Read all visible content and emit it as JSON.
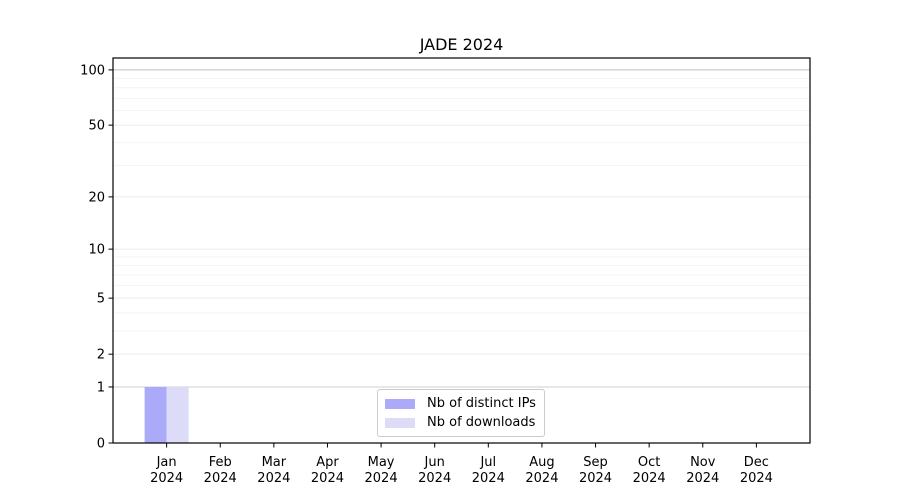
{
  "chart_data": {
    "type": "bar",
    "title": "JADE 2024",
    "year_label": "2024",
    "categories": [
      "Jan",
      "Feb",
      "Mar",
      "Apr",
      "May",
      "Jun",
      "Jul",
      "Aug",
      "Sep",
      "Oct",
      "Nov",
      "Dec"
    ],
    "series": [
      {
        "name": "Nb of distinct IPs",
        "color": "#aaaaf8",
        "values": [
          1,
          0,
          0,
          0,
          0,
          0,
          0,
          0,
          0,
          0,
          0,
          0
        ]
      },
      {
        "name": "Nb of downloads",
        "color": "#dcdcf8",
        "values": [
          1,
          0,
          0,
          0,
          0,
          0,
          0,
          0,
          0,
          0,
          0,
          0
        ]
      }
    ],
    "y_scale": "log10(1+v)",
    "y_major_ticks": [
      0,
      1,
      2,
      5,
      10,
      20,
      50,
      100
    ],
    "y_minor_ticks": [
      3,
      4,
      6,
      7,
      8,
      9,
      30,
      40,
      60,
      70,
      80,
      90
    ],
    "ylim": [
      0,
      116
    ],
    "xlabel": "",
    "ylabel": "",
    "grid": true,
    "legend_position": "lower center"
  },
  "colors": {
    "background": "#ffffff",
    "spine": "#000000",
    "tick_text": "#000000",
    "grid_minor": "#f3f3f3",
    "grid_major": "#ebebeb",
    "grid_level1": "#cfcfcf",
    "grid_top": "#c0c0c0"
  }
}
